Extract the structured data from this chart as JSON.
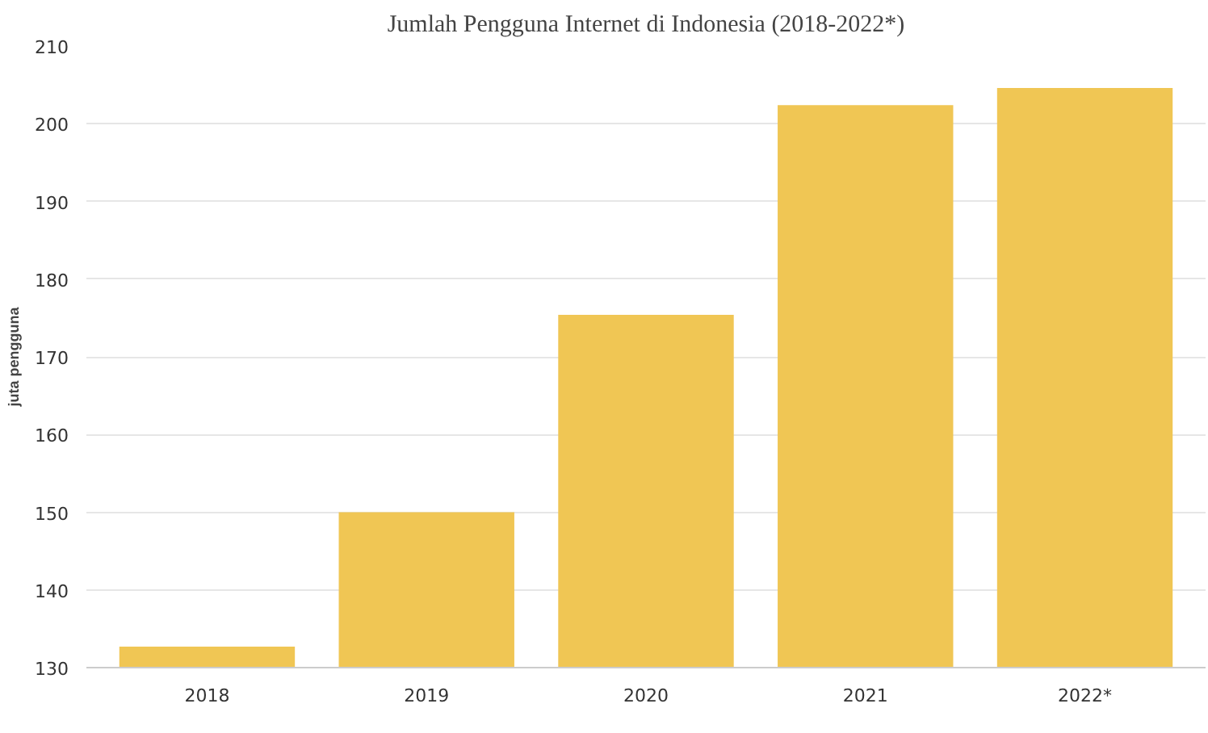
{
  "chart_data": {
    "type": "bar",
    "title": "Jumlah Pengguna Internet di Indonesia (2018-2022*)",
    "ylabel": "juta pengguna",
    "categories": [
      "2018",
      "2019",
      "2020",
      "2021",
      "2022*"
    ],
    "values": [
      132.7,
      150.0,
      175.4,
      202.4,
      204.6
    ],
    "color": "#f0c654",
    "ylim": [
      130,
      210
    ],
    "yticks": [
      130,
      140,
      150,
      160,
      170,
      180,
      190,
      200,
      210
    ],
    "grid": "y"
  }
}
